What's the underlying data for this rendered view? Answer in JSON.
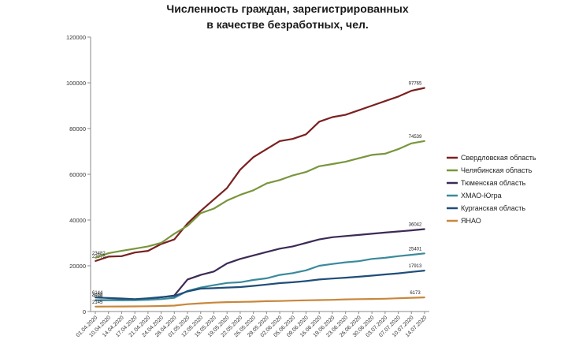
{
  "chart_data": {
    "type": "line",
    "title_lines": [
      "Численность граждан, зарегистрированных",
      "в качестве безработных, чел."
    ],
    "xlabel": "",
    "ylabel": "",
    "ylim": [
      0,
      120000
    ],
    "yticks": [
      0,
      20000,
      40000,
      60000,
      80000,
      100000,
      120000
    ],
    "grid": false,
    "legend_position": "right",
    "x": [
      "01.04.2020",
      "10.04.2020",
      "14.04.2020",
      "17.04.2020",
      "21.04.2020",
      "24.04.2020",
      "28.04.2020",
      "01.05.2020",
      "12.05.2020",
      "15.05.2020",
      "19.05.2020",
      "22.05.2020",
      "26.05.2020",
      "29.05.2020",
      "02.06.2020",
      "05.06.2020",
      "09.06.2020",
      "16.06.2020",
      "19.06.2020",
      "23.06.2020",
      "26.06.2020",
      "30.06.2020",
      "03.07.2020",
      "07.07.2020",
      "10.07.2020",
      "14.07.2020"
    ],
    "series": [
      {
        "name": "Свердловская область",
        "color": "#7b2020",
        "values": [
          22076,
          24000,
          24200,
          25800,
          26500,
          29500,
          31500,
          38500,
          44000,
          49000,
          54000,
          62000,
          67500,
          71000,
          74500,
          75500,
          77500,
          83000,
          85000,
          86000,
          88000,
          90000,
          92000,
          94000,
          96500,
          97765
        ],
        "labels": {
          "0": "22076",
          "25": "97765"
        }
      },
      {
        "name": "Челябинская область",
        "color": "#78963c",
        "values": [
          23482,
          25500,
          26500,
          27500,
          28500,
          30000,
          34000,
          37500,
          43000,
          45000,
          48500,
          51000,
          53000,
          56000,
          57500,
          59500,
          61000,
          63500,
          64500,
          65500,
          67000,
          68500,
          69000,
          71000,
          73500,
          74539
        ],
        "labels": {
          "0": "23482",
          "25": "74539"
        }
      },
      {
        "name": "Тюменская область",
        "color": "#3c2a55",
        "values": [
          4932,
          5000,
          5100,
          5300,
          5600,
          6200,
          7000,
          14000,
          16000,
          17500,
          21000,
          23000,
          24500,
          26000,
          27500,
          28500,
          30000,
          31500,
          32500,
          33000,
          33500,
          34000,
          34500,
          35000,
          35500,
          36042
        ],
        "labels": {
          "0": "4932",
          "25": "36042"
        }
      },
      {
        "name": "ХМАО-Югра",
        "color": "#3a8a9c",
        "values": [
          4916,
          4950,
          4900,
          4950,
          5100,
          5400,
          6000,
          9000,
          10500,
          11500,
          12500,
          12800,
          13800,
          14500,
          16000,
          16800,
          18000,
          20000,
          20800,
          21500,
          22000,
          23000,
          23500,
          24200,
          24800,
          25401
        ],
        "labels": {
          "0": "4916",
          "25": "25401"
        }
      },
      {
        "name": "Курганская область",
        "color": "#1f4e79",
        "values": [
          6144,
          5900,
          5700,
          5400,
          5800,
          6300,
          6800,
          8800,
          10000,
          10200,
          10500,
          10700,
          11200,
          11800,
          12400,
          12800,
          13300,
          14000,
          14400,
          14800,
          15200,
          15700,
          16200,
          16700,
          17300,
          17913
        ],
        "labels": {
          "0": "6144",
          "25": "17913"
        }
      },
      {
        "name": "ЯНАО",
        "color": "#c8873c",
        "values": [
          2145,
          2160,
          2200,
          2250,
          2300,
          2400,
          2600,
          3200,
          3600,
          3900,
          4100,
          4200,
          4300,
          4500,
          4600,
          4750,
          4900,
          5000,
          5100,
          5300,
          5400,
          5500,
          5600,
          5800,
          6000,
          6173
        ],
        "labels": {
          "0": "2145",
          "25": "6173"
        }
      }
    ]
  }
}
